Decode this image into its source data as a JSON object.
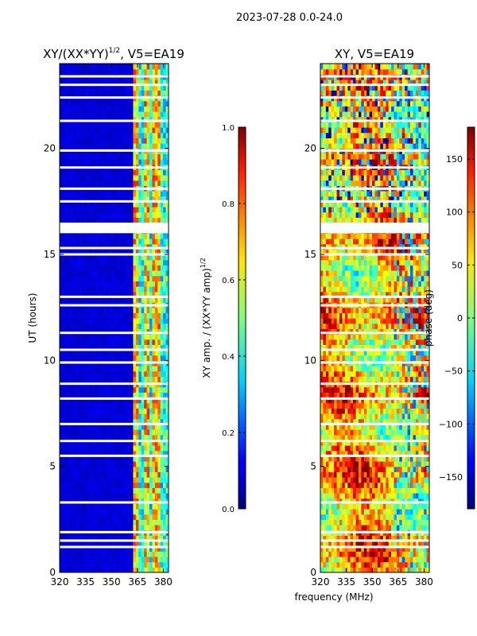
{
  "figure_title": "2023-07-28 0.0-24.0",
  "xlabel": "frequency (MHz)",
  "ylabel": "UT (hours)",
  "chart_data": [
    {
      "type": "heatmap",
      "title_main": "XY/(XX*YY)",
      "title_sup": "1/2",
      "title_rest": ", V5=EA19",
      "xlim": [
        320,
        383
      ],
      "ylim": [
        0,
        24
      ],
      "x_ticks": [
        "320",
        "335",
        "350",
        "365",
        "380"
      ],
      "y_ticks": [
        "0",
        "5",
        "10",
        "15",
        "20"
      ],
      "colorbar": {
        "label_main": "XY amp. / (XX*YY amp)",
        "label_sup": "1/2",
        "range": [
          0.0,
          1.0
        ],
        "ticks": [
          "0.0",
          "0.2",
          "0.4",
          "0.6",
          "0.8",
          "1.0"
        ]
      },
      "blank_rows_ut": [
        1.2,
        1.5,
        1.9,
        3.3,
        5.5,
        6.2,
        7.0,
        8.2,
        8.9,
        9.9,
        10.5,
        11.3,
        12.6,
        13.0,
        15.0,
        15.3,
        16.3,
        17.5,
        18.1,
        19.1,
        19.9,
        21.3,
        22.4,
        23.0,
        23.4
      ],
      "blank_band_ut": [
        16.0,
        16.5
      ],
      "bright_channels_mhz": [
        364.5,
        370.5,
        375.5,
        377.5
      ]
    },
    {
      "type": "heatmap",
      "title_main": "XY, V5=EA19",
      "xlim": [
        320,
        383
      ],
      "ylim": [
        0,
        24
      ],
      "x_ticks": [
        "320",
        "335",
        "350",
        "365",
        "380"
      ],
      "y_ticks": [
        "0",
        "5",
        "10",
        "15",
        "20"
      ],
      "colorbar": {
        "label_main": "phase (deg)",
        "range": [
          -180,
          180
        ],
        "ticks": [
          "−150",
          "−100",
          "−50",
          "0",
          "50",
          "100",
          "150"
        ]
      },
      "blank_rows_ut": [
        1.2,
        1.5,
        1.9,
        3.3,
        5.5,
        6.2,
        7.0,
        8.2,
        8.9,
        9.9,
        10.5,
        11.3,
        12.6,
        13.0,
        15.0,
        15.3,
        16.3,
        17.5,
        18.1,
        19.1,
        19.9,
        21.3,
        22.4,
        23.0,
        23.4
      ],
      "blank_band_ut": [
        16.0,
        16.5
      ]
    }
  ]
}
